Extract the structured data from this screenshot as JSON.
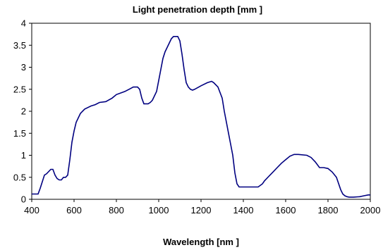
{
  "chart_data": {
    "type": "line",
    "title": "Light penetration depth  [mm ]",
    "xlabel": "Wavelength  [nm ]",
    "ylabel": "",
    "xlim": [
      400,
      2000
    ],
    "ylim": [
      0,
      4
    ],
    "xticks": [
      "400",
      "600",
      "800",
      "1000",
      "1200",
      "1400",
      "1600",
      "1800",
      "2000"
    ],
    "yticks": [
      "0",
      "0.5",
      "1",
      "1.5",
      "2",
      "2.5",
      "3",
      "3.5",
      "4"
    ],
    "grid": false,
    "legend": "none",
    "line_color": "#000080",
    "series": [
      {
        "x": [
          400,
          430,
          440,
          460,
          470,
          490,
          500,
          510,
          520,
          530,
          540,
          550,
          560,
          570,
          580,
          590,
          600,
          610,
          620,
          630,
          650,
          680,
          700,
          720,
          750,
          780,
          800,
          840,
          860,
          880,
          900,
          910,
          920,
          930,
          950,
          960,
          970,
          990,
          1000,
          1010,
          1020,
          1030,
          1040,
          1050,
          1060,
          1070,
          1080,
          1090,
          1100,
          1110,
          1120,
          1130,
          1140,
          1150,
          1160,
          1170,
          1200,
          1230,
          1250,
          1260,
          1280,
          1300,
          1310,
          1320,
          1330,
          1340,
          1350,
          1360,
          1370,
          1380,
          1390,
          1400,
          1410,
          1440,
          1470,
          1490,
          1500,
          1520,
          1540,
          1560,
          1580,
          1600,
          1620,
          1640,
          1660,
          1700,
          1720,
          1740,
          1760,
          1780,
          1800,
          1820,
          1840,
          1860,
          1870,
          1880,
          1890,
          1900,
          1920,
          1950,
          1970,
          1990,
          2000
        ],
        "y": [
          0.12,
          0.12,
          0.25,
          0.55,
          0.58,
          0.68,
          0.68,
          0.55,
          0.47,
          0.44,
          0.44,
          0.5,
          0.5,
          0.55,
          0.9,
          1.3,
          1.55,
          1.75,
          1.85,
          1.95,
          2.05,
          2.12,
          2.15,
          2.2,
          2.22,
          2.3,
          2.38,
          2.45,
          2.5,
          2.55,
          2.55,
          2.5,
          2.3,
          2.17,
          2.17,
          2.2,
          2.25,
          2.45,
          2.7,
          2.95,
          3.2,
          3.35,
          3.45,
          3.55,
          3.65,
          3.7,
          3.7,
          3.7,
          3.6,
          3.3,
          2.95,
          2.65,
          2.55,
          2.5,
          2.48,
          2.5,
          2.58,
          2.65,
          2.68,
          2.65,
          2.55,
          2.3,
          2.0,
          1.75,
          1.5,
          1.25,
          1.0,
          0.6,
          0.35,
          0.28,
          0.28,
          0.28,
          0.28,
          0.28,
          0.28,
          0.35,
          0.42,
          0.52,
          0.62,
          0.72,
          0.82,
          0.9,
          0.98,
          1.02,
          1.02,
          1.0,
          0.95,
          0.85,
          0.72,
          0.72,
          0.7,
          0.62,
          0.5,
          0.22,
          0.12,
          0.08,
          0.06,
          0.05,
          0.05,
          0.06,
          0.08,
          0.1,
          0.1
        ]
      }
    ]
  }
}
